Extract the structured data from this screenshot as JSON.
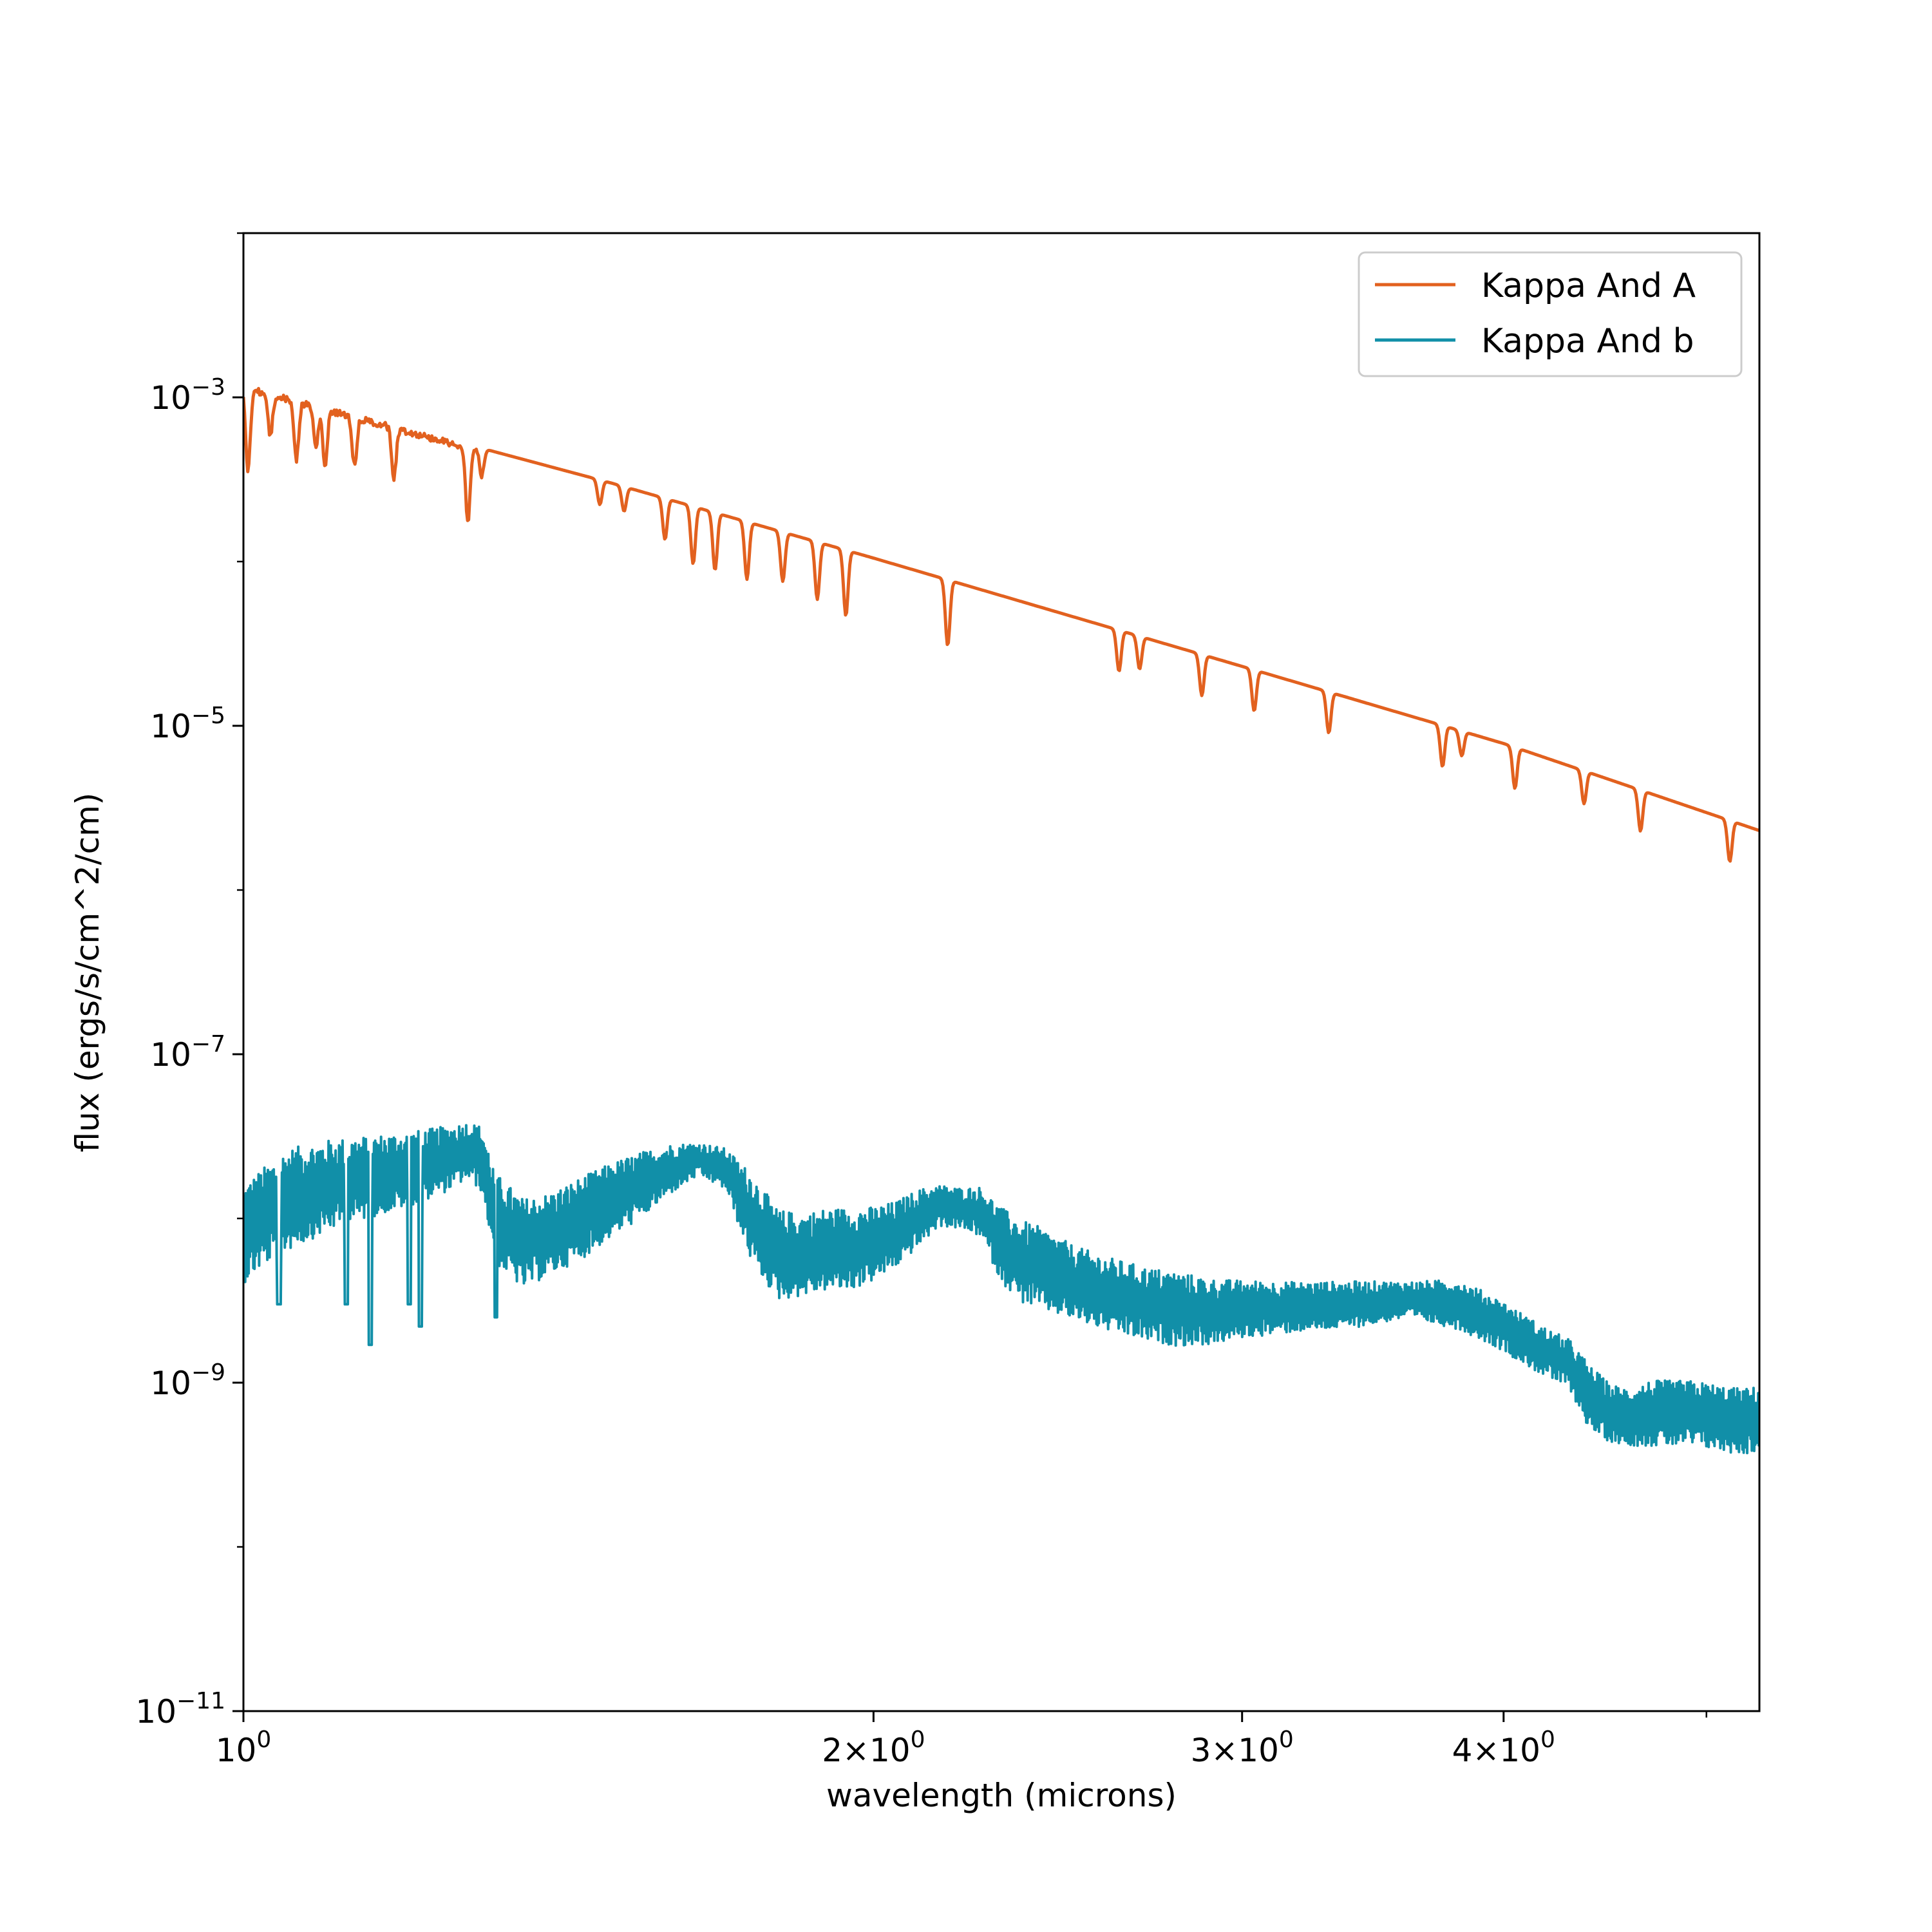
{
  "chart_data": {
    "type": "line",
    "xlabel": "wavelength (microns)",
    "ylabel": "flux (ergs/s/cm^2/cm)",
    "xscale": "log",
    "yscale": "log",
    "xlim": [
      1.0,
      5.3
    ],
    "ylim": [
      1e-11,
      0.01
    ],
    "grid": false,
    "legend": "top-right",
    "x_ticks": [
      {
        "value": 1,
        "mant": "",
        "base": "10",
        "exp": "0"
      },
      {
        "value": 2,
        "mant": "2×",
        "base": "10",
        "exp": "0"
      },
      {
        "value": 3,
        "mant": "3×",
        "base": "10",
        "exp": "0"
      },
      {
        "value": 4,
        "mant": "4×",
        "base": "10",
        "exp": "0"
      }
    ],
    "y_ticks": [
      {
        "value": 0.001,
        "base": "10",
        "exp": "−3"
      },
      {
        "value": 1e-05,
        "base": "10",
        "exp": "−5"
      },
      {
        "value": 1e-07,
        "base": "10",
        "exp": "−7"
      },
      {
        "value": 1e-09,
        "base": "10",
        "exp": "−9"
      },
      {
        "value": 1e-11,
        "base": "10",
        "exp": "−11"
      }
    ],
    "series": [
      {
        "name": "Kappa And A",
        "color": "#e2611f",
        "x": [
          1.0,
          1.5,
          2.0,
          3.0,
          4.0,
          5.3
        ],
        "y": [
          0.0012,
          0.0003,
          0.000105,
          2.3e-05,
          7.8e-06,
          2.3e-06
        ],
        "absorption_lines": [
          {
            "x": 1.005,
            "depth": 0.5
          },
          {
            "x": 1.03,
            "depth": 0.25
          },
          {
            "x": 1.06,
            "depth": 0.35
          },
          {
            "x": 1.083,
            "depth": 0.25
          },
          {
            "x": 1.094,
            "depth": 0.35
          },
          {
            "x": 1.13,
            "depth": 0.3
          },
          {
            "x": 1.18,
            "depth": 0.3
          },
          {
            "x": 1.28,
            "depth": 0.45
          },
          {
            "x": 1.3,
            "depth": 0.15
          },
          {
            "x": 1.48,
            "depth": 0.15
          },
          {
            "x": 1.52,
            "depth": 0.15
          },
          {
            "x": 1.59,
            "depth": 0.25
          },
          {
            "x": 1.64,
            "depth": 0.35
          },
          {
            "x": 1.68,
            "depth": 0.35
          },
          {
            "x": 1.74,
            "depth": 0.35
          },
          {
            "x": 1.81,
            "depth": 0.3
          },
          {
            "x": 1.88,
            "depth": 0.35
          },
          {
            "x": 1.94,
            "depth": 0.4
          },
          {
            "x": 2.17,
            "depth": 0.4
          },
          {
            "x": 2.62,
            "depth": 0.25
          },
          {
            "x": 2.68,
            "depth": 0.2
          },
          {
            "x": 2.87,
            "depth": 0.25
          },
          {
            "x": 3.04,
            "depth": 0.25
          },
          {
            "x": 3.3,
            "depth": 0.25
          },
          {
            "x": 3.74,
            "depth": 0.25
          },
          {
            "x": 3.82,
            "depth": 0.15
          },
          {
            "x": 4.05,
            "depth": 0.25
          },
          {
            "x": 4.37,
            "depth": 0.2
          },
          {
            "x": 4.65,
            "depth": 0.25
          },
          {
            "x": 5.13,
            "depth": 0.25
          }
        ]
      },
      {
        "name": "Kappa And b",
        "color": "#118fa8",
        "x": [
          1.0,
          1.02,
          1.05,
          1.1,
          1.15,
          1.2,
          1.25,
          1.28,
          1.3,
          1.32,
          1.36,
          1.4,
          1.45,
          1.5,
          1.55,
          1.6,
          1.65,
          1.7,
          1.75,
          1.8,
          1.85,
          1.9,
          1.95,
          2.0,
          2.05,
          2.1,
          2.15,
          2.2,
          2.25,
          2.3,
          2.35,
          2.4,
          2.5,
          2.6,
          2.7,
          2.8,
          2.9,
          3.0,
          3.2,
          3.4,
          3.6,
          3.8,
          3.9,
          4.0,
          4.1,
          4.2,
          4.3,
          4.4,
          4.5,
          4.6,
          4.7,
          4.8,
          4.9,
          5.0,
          5.1,
          5.2,
          5.3
        ],
        "y": [
          8e-09,
          1e-08,
          1.3e-08,
          1.6e-08,
          1.8e-08,
          2e-08,
          2.3e-08,
          2.6e-08,
          2.3e-08,
          1e-08,
          7e-09,
          8e-09,
          1e-08,
          1.3e-08,
          1.6e-08,
          2e-08,
          2.3e-08,
          2e-08,
          1e-08,
          6e-09,
          6e-09,
          6.5e-09,
          6.5e-09,
          7e-09,
          8e-09,
          1e-08,
          1.2e-08,
          1.15e-08,
          1.1e-08,
          7e-09,
          5.5e-09,
          5e-09,
          4e-09,
          3.4e-09,
          3e-09,
          2.8e-09,
          2.7e-09,
          2.8e-09,
          2.9e-09,
          3e-09,
          3.2e-09,
          3e-09,
          2.6e-09,
          2.2e-09,
          1.8e-09,
          1.5e-09,
          1.3e-09,
          8e-10,
          6.5e-10,
          6.2e-10,
          6.5e-10,
          6.5e-10,
          6.5e-10,
          6.3e-10,
          6e-10,
          5.8e-10,
          6e-10
        ],
        "spread": [
          0.6,
          0.6,
          0.62,
          0.55,
          0.5,
          0.45,
          0.4,
          0.35,
          0.4,
          0.55,
          0.55,
          0.5,
          0.5,
          0.45,
          0.4,
          0.3,
          0.2,
          0.25,
          0.55,
          0.55,
          0.5,
          0.5,
          0.5,
          0.45,
          0.4,
          0.35,
          0.25,
          0.25,
          0.3,
          0.45,
          0.5,
          0.5,
          0.45,
          0.45,
          0.45,
          0.45,
          0.4,
          0.35,
          0.3,
          0.28,
          0.22,
          0.3,
          0.3,
          0.3,
          0.3,
          0.3,
          0.3,
          0.4,
          0.35,
          0.35,
          0.4,
          0.4,
          0.4,
          0.4,
          0.4,
          0.4,
          0.4
        ],
        "deep_dips": [
          {
            "x": 1.04,
            "value": 3e-09
          },
          {
            "x": 1.12,
            "value": 3e-09
          },
          {
            "x": 1.15,
            "value": 1.7e-09
          },
          {
            "x": 1.2,
            "value": 3e-09
          },
          {
            "x": 1.215,
            "value": 2.2e-09
          },
          {
            "x": 1.32,
            "value": 2.5e-09
          }
        ]
      }
    ]
  }
}
